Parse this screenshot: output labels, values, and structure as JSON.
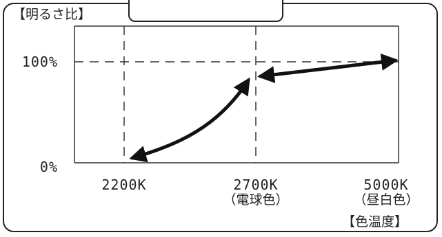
{
  "chart_data": {
    "type": "line",
    "title": "",
    "ylabel": "【明るさ比】",
    "xlabel": "【色温度】",
    "y_ticks": [
      "100%",
      "0%"
    ],
    "x_ticks": [
      {
        "value": "2200K",
        "sub": ""
      },
      {
        "value": "2700K",
        "sub": "（電球色）"
      },
      {
        "value": "5000K",
        "sub": "（昼白色）"
      }
    ],
    "ylim": [
      0,
      100
    ],
    "reference_lines": {
      "y": 100,
      "x": [
        "2200K",
        "2700K"
      ]
    },
    "series": [
      {
        "x": [
          "2200K",
          "2700K"
        ],
        "y": [
          0,
          85
        ],
        "shape": "curve",
        "arrows": "both"
      },
      {
        "x": [
          "2700K",
          "5000K"
        ],
        "y": [
          85,
          100
        ],
        "shape": "line",
        "arrows": "both"
      }
    ],
    "grid": false,
    "colors": {
      "frame": "#222222",
      "axis": "#333333",
      "guide": "#333333",
      "arrow": "#111111"
    }
  }
}
